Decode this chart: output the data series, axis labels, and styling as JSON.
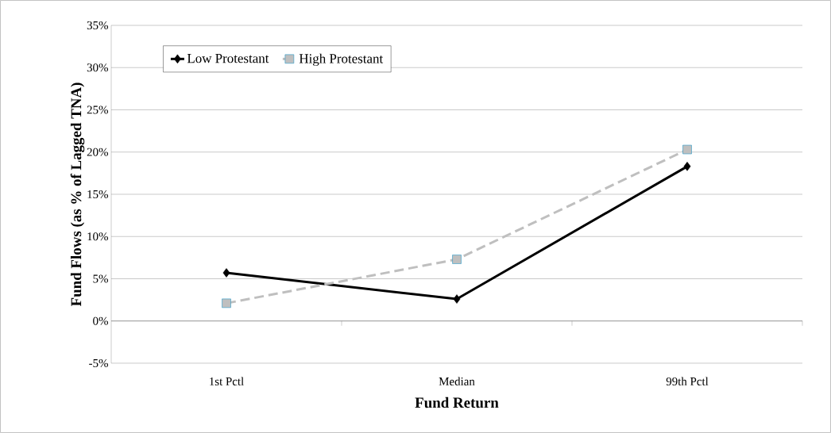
{
  "chart_data": {
    "type": "line",
    "xlabel": "Fund Return",
    "ylabel": "Fund Flows (as % of Lagged TNA)",
    "categories": [
      "1st Pctl",
      "Median",
      "99th Pctl"
    ],
    "series": [
      {
        "name": "Low Protestant",
        "color": "#000000",
        "values": [
          5.7,
          2.6,
          18.3
        ],
        "marker": "diamond",
        "line_style": "solid"
      },
      {
        "name": "High Protestant",
        "color": "#bfbfbf",
        "values": [
          2.1,
          7.3,
          20.3
        ],
        "marker": "square",
        "line_style": "dashed"
      }
    ],
    "ylim": [
      -5,
      35
    ],
    "yticks": [
      {
        "value": -5,
        "label": "-5%"
      },
      {
        "value": 0,
        "label": "0%"
      },
      {
        "value": 5,
        "label": "5%"
      },
      {
        "value": 10,
        "label": "10%"
      },
      {
        "value": 15,
        "label": "15%"
      },
      {
        "value": 20,
        "label": "20%"
      },
      {
        "value": 25,
        "label": "25%"
      },
      {
        "value": 30,
        "label": "30%"
      },
      {
        "value": 35,
        "label": "35%"
      }
    ],
    "grid": "y",
    "legend": "top left"
  }
}
